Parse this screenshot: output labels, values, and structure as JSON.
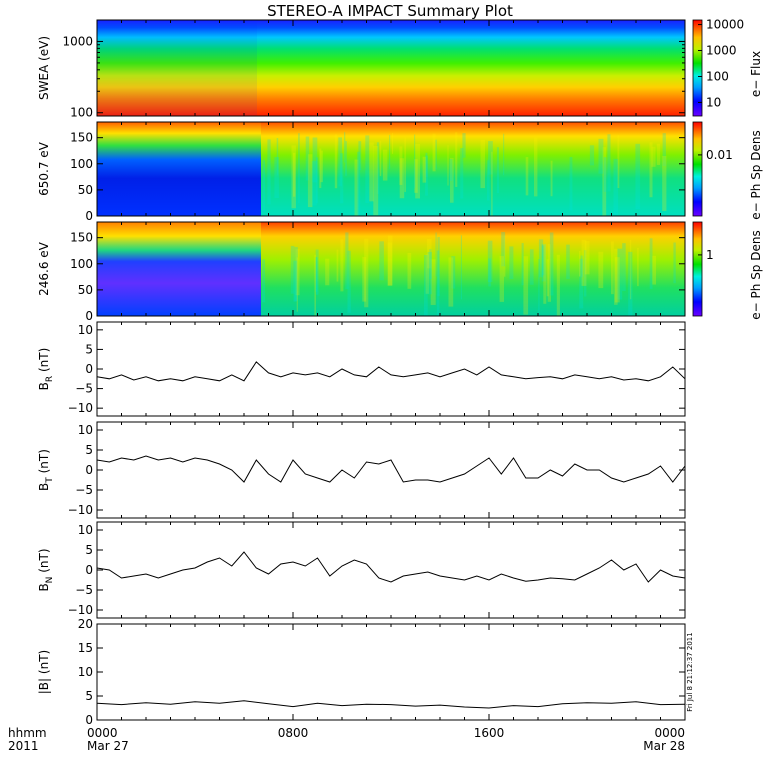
{
  "title": "STEREO-A IMPACT Summary Plot",
  "time_axis": {
    "label_line1": "hhmm",
    "label_line2": "2011",
    "ticks": [
      {
        "t": 0,
        "hhmm": "0000",
        "date": "Mar 27"
      },
      {
        "t": 8,
        "hhmm": "0800",
        "date": ""
      },
      {
        "t": 16,
        "hhmm": "1600",
        "date": ""
      },
      {
        "t": 24,
        "hhmm": "0000",
        "date": "Mar 28"
      }
    ],
    "range_hours": [
      0,
      24
    ]
  },
  "stamp": "Fri Jul  8 21:12:37 2011",
  "chart_data": [
    {
      "type": "heatmap",
      "ylabel": "SWEA (eV)",
      "yscale": "log",
      "ylim": [
        90,
        2000
      ],
      "yticks": [
        "100",
        "1000"
      ],
      "colorbar": {
        "label": "e− Flux",
        "ticks": [
          "10",
          "100",
          "1000",
          "10000"
        ],
        "scale": "log",
        "range": [
          3,
          15000
        ]
      },
      "description_of_field": "Flux decreasing with energy; uniform in time"
    },
    {
      "type": "heatmap",
      "ylabel": "650.7 eV",
      "ylim": [
        0,
        180
      ],
      "yticks": [
        "0",
        "50",
        "100",
        "150"
      ],
      "colorbar": {
        "label": "e− Ph Sp Dens",
        "ticks": [
          "0.01"
        ]
      }
    },
    {
      "type": "heatmap",
      "ylabel": "246.6 eV",
      "ylim": [
        0,
        180
      ],
      "yticks": [
        "0",
        "50",
        "100",
        "150"
      ],
      "colorbar": {
        "label": "e− Ph Sp Dens",
        "ticks": [
          "1"
        ]
      }
    },
    {
      "type": "line",
      "ylabel": "B",
      "ylabel_sub": "R",
      "ylabel_unit": "(nT)",
      "ylim": [
        -12,
        12
      ],
      "yticks": [
        "−10",
        "−5",
        "0",
        "5",
        "10"
      ],
      "x": [
        0,
        0.5,
        1,
        1.5,
        2,
        2.5,
        3,
        3.5,
        4,
        4.5,
        5,
        5.5,
        6,
        6.5,
        7,
        7.5,
        8,
        8.5,
        9,
        9.5,
        10,
        10.5,
        11,
        11.5,
        12,
        12.5,
        13,
        13.5,
        14,
        14.5,
        15,
        15.5,
        16,
        16.5,
        17,
        17.5,
        18,
        18.5,
        19,
        19.5,
        20,
        20.5,
        21,
        21.5,
        22,
        22.5,
        23,
        23.5,
        24
      ],
      "y": [
        -2,
        -2.5,
        -1.5,
        -2.8,
        -2,
        -3,
        -2.5,
        -3,
        -2,
        -2.5,
        -3,
        -1.5,
        -3,
        1.8,
        -1,
        -2,
        -1,
        -1.5,
        -1,
        -2,
        0,
        -1.5,
        -2,
        0.5,
        -1.5,
        -2,
        -1.5,
        -1,
        -2,
        -1,
        0,
        -1.5,
        0.5,
        -1.5,
        -2,
        -2.5,
        -2.2,
        -2,
        -2.5,
        -1.5,
        -2,
        -2.5,
        -2,
        -2.8,
        -2.5,
        -3,
        -2,
        0.5,
        -2.5
      ]
    },
    {
      "type": "line",
      "ylabel": "B",
      "ylabel_sub": "T",
      "ylabel_unit": "(nT)",
      "ylim": [
        -12,
        12
      ],
      "yticks": [
        "−10",
        "−5",
        "0",
        "5",
        "10"
      ],
      "x": [
        0,
        0.5,
        1,
        1.5,
        2,
        2.5,
        3,
        3.5,
        4,
        4.5,
        5,
        5.5,
        6,
        6.5,
        7,
        7.5,
        8,
        8.5,
        9,
        9.5,
        10,
        10.5,
        11,
        11.5,
        12,
        12.5,
        13,
        13.5,
        14,
        14.5,
        15,
        15.5,
        16,
        16.5,
        17,
        17.5,
        18,
        18.5,
        19,
        19.5,
        20,
        20.5,
        21,
        21.5,
        22,
        22.5,
        23,
        23.5,
        24
      ],
      "y": [
        2.5,
        2,
        3,
        2.5,
        3.5,
        2.5,
        3,
        2,
        3,
        2.5,
        1.5,
        0,
        -3,
        2.5,
        -1,
        -3,
        2.5,
        -1,
        -2,
        -3,
        0,
        -2,
        2,
        1.5,
        2.5,
        -3,
        -2.5,
        -2.5,
        -3,
        -2,
        -1,
        1,
        3,
        -1,
        3,
        -2,
        -2,
        0,
        -1.5,
        1.5,
        0,
        0,
        -2,
        -3,
        -2,
        -1,
        1,
        -3,
        1
      ]
    },
    {
      "type": "line",
      "ylabel": "B",
      "ylabel_sub": "N",
      "ylabel_unit": "(nT)",
      "ylim": [
        -12,
        12
      ],
      "yticks": [
        "−10",
        "−5",
        "0",
        "5",
        "10"
      ],
      "x": [
        0,
        0.5,
        1,
        1.5,
        2,
        2.5,
        3,
        3.5,
        4,
        4.5,
        5,
        5.5,
        6,
        6.5,
        7,
        7.5,
        8,
        8.5,
        9,
        9.5,
        10,
        10.5,
        11,
        11.5,
        12,
        12.5,
        13,
        13.5,
        14,
        14.5,
        15,
        15.5,
        16,
        16.5,
        17,
        17.5,
        18,
        18.5,
        19,
        19.5,
        20,
        20.5,
        21,
        21.5,
        22,
        22.5,
        23,
        23.5,
        24
      ],
      "y": [
        0.5,
        0,
        -2,
        -1.5,
        -1,
        -2,
        -1,
        0,
        0.5,
        2,
        3,
        1,
        4.5,
        0.5,
        -1,
        1.5,
        2,
        1,
        3,
        -1.5,
        1,
        2.5,
        1.5,
        -2,
        -3,
        -1.5,
        -1,
        -0.5,
        -1.5,
        -2,
        -2.5,
        -1.5,
        -2.5,
        -1,
        -2,
        -2.8,
        -2.5,
        -2,
        -2.2,
        -2.5,
        -1,
        0.5,
        2.5,
        0,
        1.5,
        -3,
        0,
        -1.5,
        -2
      ]
    },
    {
      "type": "line",
      "ylabel": "|B|",
      "ylabel_unit": "(nT)",
      "ylim": [
        0,
        20
      ],
      "yticks": [
        "0",
        "5",
        "10",
        "15",
        "20"
      ],
      "x": [
        0,
        1,
        2,
        3,
        4,
        5,
        6,
        7,
        8,
        9,
        10,
        11,
        12,
        13,
        14,
        15,
        16,
        17,
        18,
        19,
        20,
        21,
        22,
        23,
        24
      ],
      "y": [
        3.5,
        3.2,
        3.6,
        3.3,
        3.8,
        3.5,
        4.0,
        3.4,
        2.8,
        3.5,
        3.0,
        3.3,
        3.2,
        2.9,
        3.1,
        2.7,
        2.5,
        3.0,
        2.8,
        3.4,
        3.6,
        3.5,
        3.8,
        3.2,
        3.3
      ]
    }
  ]
}
